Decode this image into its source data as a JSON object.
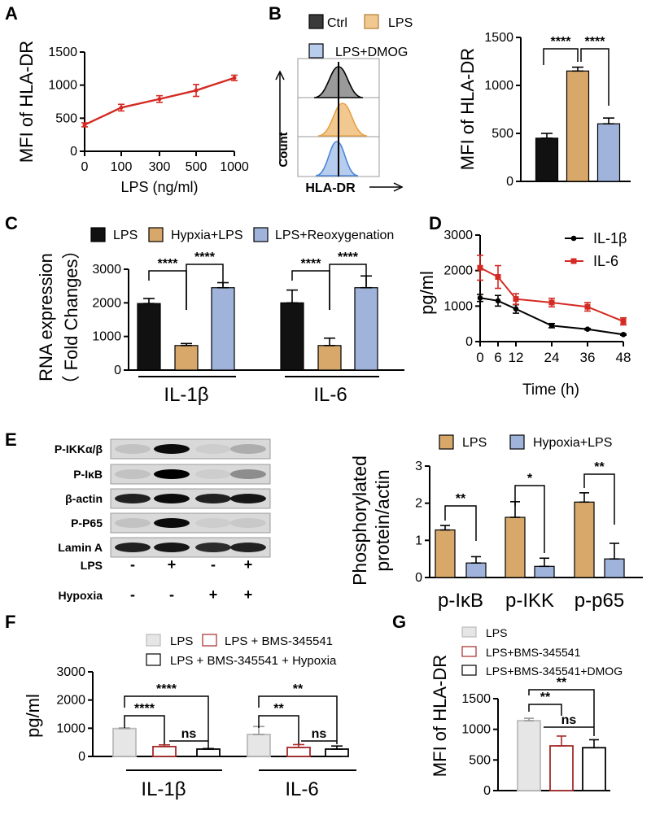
{
  "panel_labels": [
    "A",
    "B",
    "C",
    "D",
    "E",
    "F",
    "G"
  ],
  "colors": {
    "black": "#111111",
    "tan": "#d8a86a",
    "blue": "#9fb3db",
    "red": "#d42a23",
    "lightgray": "#e6e6e6",
    "darkred": "#a52a2a",
    "flow_gray": "#9a9a9a",
    "flow_orange": "#f2c891",
    "flow_blue": "#b7cdee"
  },
  "chart_data": [
    {
      "id": "A",
      "type": "line",
      "x": [
        0,
        100,
        300,
        500,
        1000
      ],
      "x_ticks": [
        "0",
        "100",
        "300",
        "500",
        "1000"
      ],
      "values": [
        400,
        660,
        790,
        920,
        1110
      ],
      "errors": [
        30,
        50,
        50,
        90,
        40
      ],
      "xlabel": "LPS (ng/ml)",
      "ylabel": "MFI of HLA-DR",
      "ylim": [
        0,
        1500
      ],
      "y_ticks": [
        "0",
        "500",
        "1000",
        "1500"
      ]
    },
    {
      "id": "B_flow",
      "type": "histogram",
      "legend": [
        "Ctrl",
        "LPS",
        "LPS+DMOG"
      ],
      "xlabel": "HLA-DR",
      "ylabel": "Count"
    },
    {
      "id": "B",
      "type": "bar",
      "categories": [
        "Ctrl",
        "LPS",
        "LPS+DMOG"
      ],
      "values": [
        450,
        1150,
        600
      ],
      "errors": [
        50,
        40,
        60
      ],
      "ylabel": "MFI of HLA-DR",
      "ylim": [
        0,
        1500
      ],
      "y_ticks": [
        "0",
        "500",
        "1000",
        "1500"
      ],
      "sig": [
        "****",
        "****"
      ]
    },
    {
      "id": "C",
      "type": "bar",
      "groups": [
        "IL-1β",
        "IL-6"
      ],
      "legend": [
        "LPS",
        "Hypxia+LPS",
        "LPS+Reoxygenation"
      ],
      "series": [
        {
          "name": "LPS",
          "values": [
            1980,
            2000
          ],
          "errors": [
            150,
            380
          ]
        },
        {
          "name": "Hypxia+LPS",
          "values": [
            730,
            730
          ],
          "errors": [
            60,
            220
          ]
        },
        {
          "name": "LPS+Reoxygenation",
          "values": [
            2450,
            2450
          ],
          "errors": [
            150,
            350
          ]
        }
      ],
      "ylabel": "RNA expression",
      "ylabel2": "（ Fold Changes）",
      "ylim": [
        0,
        3000
      ],
      "y_ticks": [
        "0",
        "1000",
        "2000",
        "3000"
      ],
      "sig": [
        "****",
        "****",
        "****",
        "****"
      ]
    },
    {
      "id": "D",
      "type": "line",
      "x": [
        0,
        6,
        12,
        24,
        36,
        48
      ],
      "x_ticks": [
        "0",
        "6",
        "12",
        "24",
        "36",
        "48"
      ],
      "series": [
        {
          "name": "IL-1β",
          "values": [
            1230,
            1150,
            920,
            450,
            350,
            200
          ],
          "errors": [
            100,
            150,
            120,
            60,
            20,
            20
          ]
        },
        {
          "name": "IL-6",
          "values": [
            2080,
            1820,
            1200,
            1100,
            980,
            570
          ],
          "errors": [
            350,
            320,
            150,
            120,
            120,
            100
          ]
        }
      ],
      "xlabel": "Time (h)",
      "ylabel": "pg/ml",
      "ylim": [
        0,
        3000
      ],
      "y_ticks": [
        "0",
        "1000",
        "2000",
        "3000"
      ]
    },
    {
      "id": "E_blot",
      "type": "western_blot",
      "rows": [
        "P-IKKα/β",
        "P-IκB",
        "β-actin",
        "P-P65",
        "Lamin A"
      ],
      "conditions": [
        {
          "label": "LPS",
          "marks": [
            "-",
            "+",
            "-",
            "+"
          ]
        },
        {
          "label": "Hypoxia",
          "marks": [
            "-",
            "-",
            "+",
            "+"
          ]
        }
      ]
    },
    {
      "id": "E",
      "type": "bar",
      "categories": [
        "p-IκB",
        "p-IKK",
        "p-p65"
      ],
      "legend": [
        "LPS",
        "Hypoxia+LPS"
      ],
      "series": [
        {
          "name": "LPS",
          "values": [
            1.28,
            1.62,
            2.03
          ],
          "errors": [
            0.12,
            0.42,
            0.25
          ]
        },
        {
          "name": "Hypoxia+LPS",
          "values": [
            0.39,
            0.3,
            0.5
          ],
          "errors": [
            0.17,
            0.22,
            0.42
          ]
        }
      ],
      "ylabel": "Phosphorylated",
      "ylabel2": "protein/actin",
      "ylim": [
        0,
        3
      ],
      "y_ticks": [
        "0",
        "1",
        "2",
        "3"
      ],
      "sig": [
        "**",
        "*",
        "**"
      ]
    },
    {
      "id": "F",
      "type": "bar",
      "groups": [
        "IL-1β",
        "IL-6"
      ],
      "legend": [
        "LPS",
        "LPS + BMS-345541",
        "LPS + BMS-345541 + Hypoxia"
      ],
      "series": [
        {
          "name": "LPS",
          "values": [
            990,
            780
          ],
          "errors": [
            20,
            280
          ]
        },
        {
          "name": "LPS + BMS-345541",
          "values": [
            350,
            320
          ],
          "errors": [
            60,
            100
          ]
        },
        {
          "name": "LPS + BMS-345541 + Hypoxia",
          "values": [
            260,
            260
          ],
          "errors": [
            20,
            110
          ]
        }
      ],
      "ylabel": "pg/ml",
      "ylim": [
        0,
        3000
      ],
      "y_ticks": [
        "0",
        "1000",
        "2000",
        "3000"
      ],
      "sig": [
        "****",
        "****",
        "ns",
        "**",
        "**",
        "ns"
      ]
    },
    {
      "id": "G",
      "type": "bar",
      "categories": [
        "LPS",
        "LPS+BMS-345541",
        "LPS+BMS-345541+DMOG"
      ],
      "legend": [
        "LPS",
        "LPS+BMS-345541",
        "LPS+BMS-345541+DMOG"
      ],
      "values": [
        1140,
        730,
        700
      ],
      "errors": [
        40,
        160,
        130
      ],
      "ylabel": "MFI of HLA-DR",
      "ylim": [
        0,
        1500
      ],
      "y_ticks": [
        "0",
        "500",
        "1000",
        "1500"
      ],
      "sig": [
        "**",
        "**",
        "ns"
      ]
    }
  ]
}
